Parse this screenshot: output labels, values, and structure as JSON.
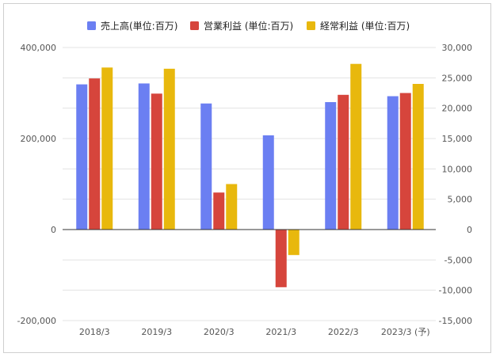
{
  "chart_data": {
    "type": "bar",
    "categories": [
      "2018/3",
      "2019/3",
      "2020/3",
      "2021/3",
      "2022/3",
      "2023/3 (予)"
    ],
    "series": [
      {
        "name": "売上高(単位:百万)",
        "axis": "left",
        "color": "#6b7ff2",
        "values": [
          319000,
          321000,
          277000,
          207000,
          280000,
          293000
        ]
      },
      {
        "name": "営業利益 (単位:百万)",
        "axis": "right",
        "color": "#d6453c",
        "values": [
          24900,
          22400,
          6100,
          -9500,
          22200,
          22500
        ]
      },
      {
        "name": "経常利益 (単位:百万)",
        "axis": "right",
        "color": "#e8b80d",
        "values": [
          26700,
          26500,
          7500,
          -4200,
          27300,
          24000
        ]
      }
    ],
    "left_axis": {
      "min": -200000,
      "max": 400000,
      "ticks": [
        "-200,000",
        "0",
        "200,000",
        "400,000"
      ],
      "tick_values": [
        -200000,
        0,
        200000,
        400000
      ]
    },
    "right_axis": {
      "min": -15000,
      "max": 30000,
      "ticks": [
        "-15,000",
        "-10,000",
        "-5,000",
        "0",
        "5,000",
        "10,000",
        "15,000",
        "20,000",
        "25,000",
        "30,000"
      ],
      "tick_values": [
        -15000,
        -10000,
        -5000,
        0,
        5000,
        10000,
        15000,
        20000,
        25000,
        30000
      ]
    },
    "legend_position": "top",
    "grid": true
  }
}
